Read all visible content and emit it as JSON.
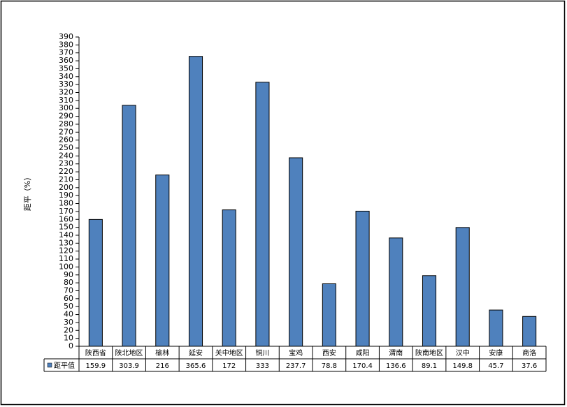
{
  "chart_data": {
    "type": "bar",
    "y_label": "距平（%）",
    "categories": [
      "陕西省",
      "陕北地区",
      "榆林",
      "延安",
      "关中地区",
      "铜川",
      "宝鸡",
      "西安",
      "咸阳",
      "渭南",
      "陕南地区",
      "汉中",
      "安康",
      "商洛"
    ],
    "series": [
      {
        "name": "距平值",
        "color": "#4f81bd",
        "values": [
          159.9,
          303.9,
          216,
          365.6,
          172,
          333,
          237.7,
          78.8,
          170.4,
          136.6,
          89.1,
          149.8,
          45.7,
          37.6
        ]
      }
    ],
    "ylim": [
      0,
      390
    ],
    "yticks": [
      0,
      10,
      20,
      30,
      40,
      50,
      60,
      70,
      80,
      90,
      100,
      110,
      120,
      130,
      140,
      150,
      160,
      170,
      180,
      190,
      200,
      210,
      220,
      230,
      240,
      250,
      260,
      270,
      280,
      290,
      300,
      310,
      320,
      330,
      340,
      350,
      360,
      370,
      380,
      390
    ],
    "grid": false
  }
}
